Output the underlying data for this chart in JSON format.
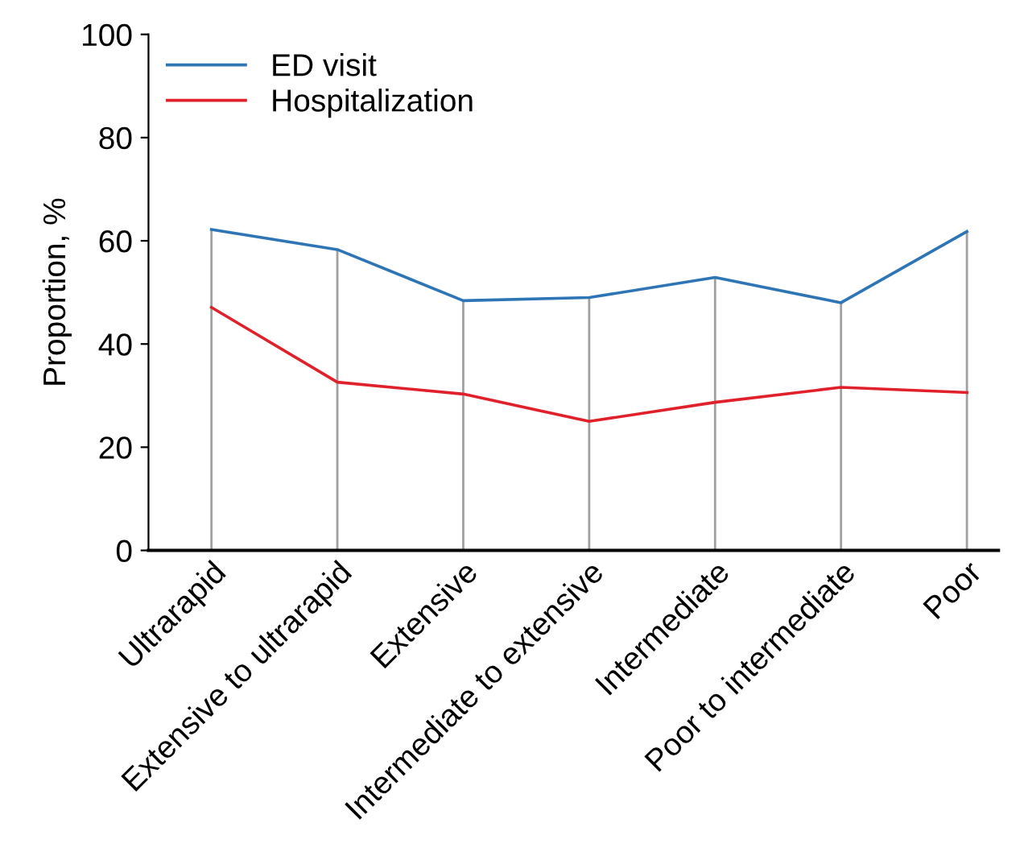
{
  "chart_data": {
    "type": "line",
    "ylabel": "Proportion, %",
    "categories": [
      "Ultrarapid",
      "Extensive to ultrarapid",
      "Extensive",
      "Intermediate to extensive",
      "Intermediate",
      "Poor to intermediate",
      "Poor"
    ],
    "series": [
      {
        "name": "ED visit",
        "color": "#2e75b6",
        "values": [
          62.2,
          58.3,
          48.4,
          49.0,
          52.9,
          48.0,
          61.8
        ]
      },
      {
        "name": "Hospitalization",
        "color": "#e0202a",
        "values": [
          47.1,
          32.6,
          30.3,
          25.0,
          28.7,
          31.6,
          30.6
        ]
      }
    ],
    "ylim": [
      0,
      100
    ],
    "yticks": [
      0,
      20,
      40,
      60,
      80,
      100
    ],
    "ref_lines": [
      {
        "axis": "x",
        "value": "Ultrarapid",
        "color": "#a0a0a0"
      },
      {
        "axis": "x",
        "value": "Extensive to ultrarapid",
        "color": "#a0a0a0"
      },
      {
        "axis": "x",
        "value": "Extensive",
        "color": "#a0a0a0"
      },
      {
        "axis": "x",
        "value": "Intermediate to extensive",
        "color": "#a0a0a0"
      },
      {
        "axis": "x",
        "value": "Intermediate",
        "color": "#a0a0a0"
      },
      {
        "axis": "x",
        "value": "Poor to intermediate",
        "color": "#a0a0a0"
      },
      {
        "axis": "x",
        "value": "Poor",
        "color": "#a0a0a0"
      }
    ],
    "grid": false,
    "legend": "top left",
    "marker": "none",
    "line_style": "solid"
  }
}
